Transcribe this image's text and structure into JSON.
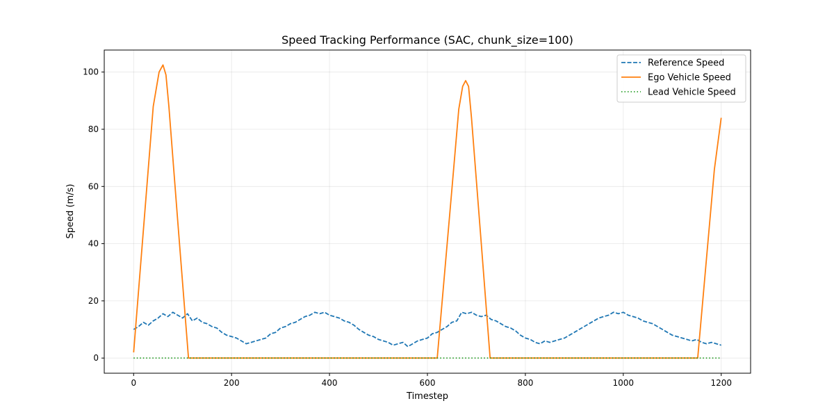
{
  "chart_data": {
    "type": "line",
    "title": "Speed Tracking Performance (SAC, chunk_size=100)",
    "xlabel": "Timestep",
    "ylabel": "Speed (m/s)",
    "xlim": [
      -60,
      1260
    ],
    "ylim": [
      -5.3,
      107.7
    ],
    "xticks": [
      0,
      200,
      400,
      600,
      800,
      1000,
      1200
    ],
    "yticks": [
      0,
      20,
      40,
      60,
      80,
      100
    ],
    "grid": true,
    "legend_position": "top-right",
    "series": [
      {
        "name": "Reference Speed",
        "color": "#1f77b4",
        "style": "dashed",
        "x": [
          0,
          10,
          20,
          30,
          40,
          50,
          60,
          70,
          80,
          90,
          100,
          110,
          120,
          130,
          140,
          150,
          160,
          170,
          180,
          190,
          200,
          210,
          220,
          230,
          240,
          250,
          260,
          270,
          280,
          290,
          300,
          310,
          320,
          330,
          340,
          350,
          360,
          370,
          380,
          390,
          400,
          410,
          420,
          430,
          440,
          450,
          460,
          470,
          480,
          490,
          500,
          510,
          520,
          530,
          540,
          550,
          560,
          570,
          580,
          590,
          600,
          610,
          620,
          630,
          640,
          650,
          660,
          670,
          680,
          690,
          700,
          710,
          720,
          730,
          740,
          750,
          760,
          770,
          780,
          790,
          800,
          810,
          820,
          830,
          840,
          850,
          860,
          870,
          880,
          890,
          900,
          910,
          920,
          930,
          940,
          950,
          960,
          970,
          980,
          990,
          1000,
          1010,
          1020,
          1030,
          1040,
          1050,
          1060,
          1070,
          1080,
          1090,
          1100,
          1110,
          1120,
          1130,
          1140,
          1150,
          1160,
          1170,
          1180,
          1190,
          1200
        ],
        "y": [
          10,
          11,
          12.5,
          11.5,
          13,
          14,
          15.5,
          14.5,
          16,
          15,
          14,
          15.5,
          13,
          14,
          12.5,
          12,
          11,
          10.5,
          9,
          8,
          7.5,
          7,
          6,
          5,
          5.5,
          6,
          6.5,
          7,
          8.5,
          9,
          10.5,
          11,
          12,
          12.5,
          13.5,
          14.5,
          15,
          16,
          15.5,
          16,
          15,
          14.5,
          14,
          13,
          12.5,
          11.5,
          10,
          9,
          8,
          7.5,
          6.5,
          6,
          5.5,
          4.5,
          5,
          5.5,
          4,
          5,
          6,
          6.5,
          7,
          8.5,
          9,
          10,
          11,
          12.5,
          13,
          16,
          15.5,
          16,
          15,
          14.5,
          15,
          13.5,
          13,
          12,
          11,
          10.5,
          9.5,
          8,
          7,
          6.5,
          5.5,
          5,
          6,
          5.5,
          6,
          6.5,
          7,
          8,
          9,
          10,
          11,
          12,
          13,
          14,
          14.5,
          15,
          16,
          15.5,
          16,
          15,
          14.5,
          14,
          13,
          12.5,
          12,
          11,
          10,
          9,
          8,
          7.5,
          7,
          6.5,
          6,
          6.5,
          5.5,
          5,
          5.5,
          5,
          4.5
        ]
      },
      {
        "name": "Ego Vehicle Speed",
        "color": "#ff7f0e",
        "style": "solid",
        "x": [
          0,
          20,
          40,
          52,
          60,
          66,
          72,
          90,
          112,
          620,
          650,
          664,
          672,
          678,
          684,
          690,
          710,
          728,
          1152,
          1170,
          1186,
          1200
        ],
        "y": [
          2,
          45,
          88,
          100,
          102.5,
          99,
          88,
          48,
          0,
          0,
          59,
          87,
          95,
          97,
          95,
          84,
          40,
          0,
          0,
          35,
          66,
          84
        ]
      },
      {
        "name": "Lead Vehicle Speed",
        "color": "#2ca02c",
        "style": "dotted",
        "x": [
          0,
          1200
        ],
        "y": [
          0,
          0
        ]
      }
    ]
  }
}
